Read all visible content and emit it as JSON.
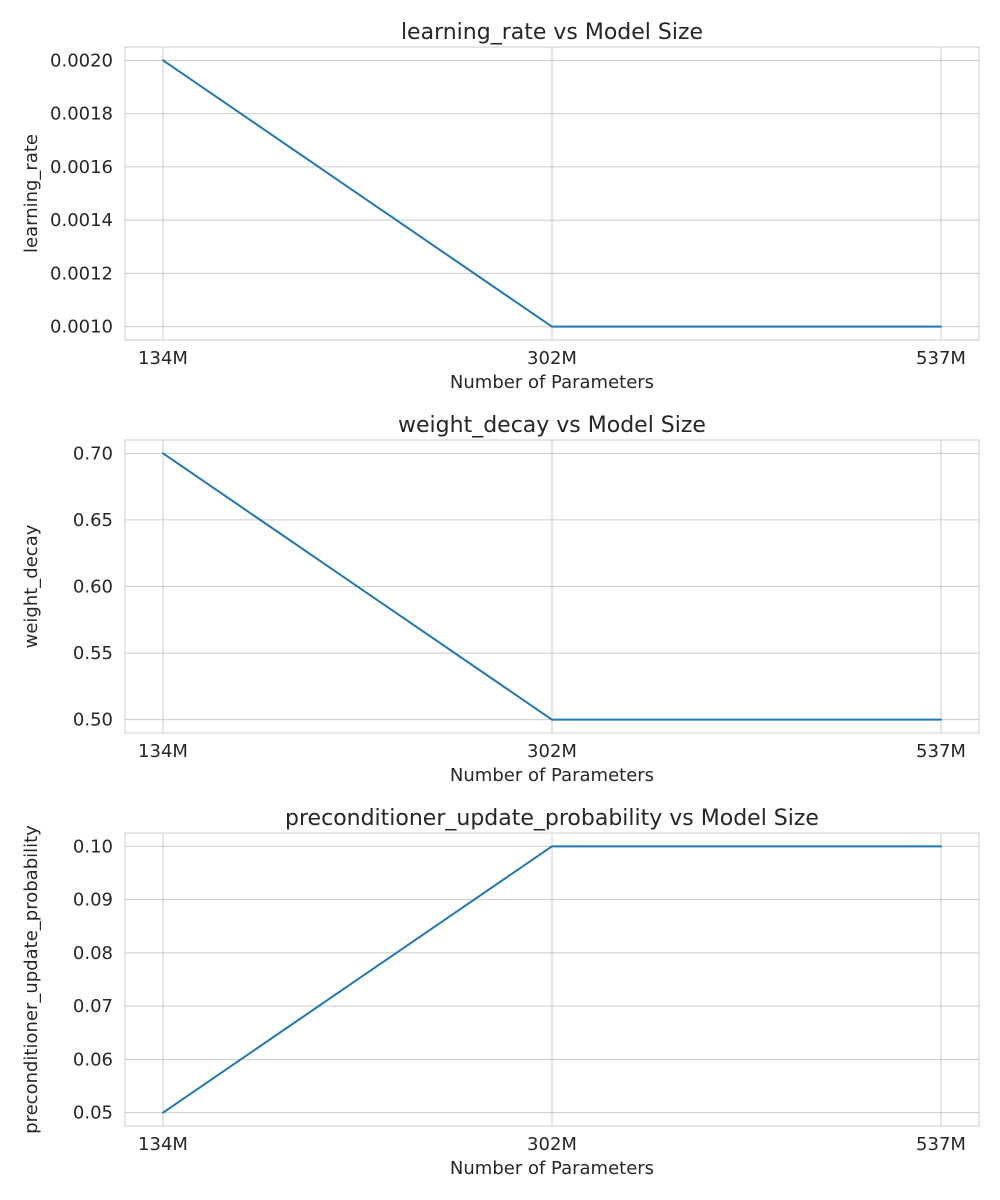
{
  "chart_data": [
    {
      "type": "line",
      "title": "learning_rate vs Model Size",
      "xlabel": "Number of Parameters",
      "ylabel": "learning_rate",
      "categories": [
        "134M",
        "302M",
        "537M"
      ],
      "x": [
        134,
        302,
        537
      ],
      "values": [
        0.002,
        0.001,
        0.001
      ],
      "ylim": [
        0.00095,
        0.00205
      ],
      "yticks": [
        0.001,
        0.0012,
        0.0014,
        0.0016,
        0.0018,
        0.002
      ],
      "ytick_labels": [
        "0.0010",
        "0.0012",
        "0.0014",
        "0.0016",
        "0.0018",
        "0.0020"
      ],
      "grid": true,
      "color": "#1f77b4"
    },
    {
      "type": "line",
      "title": "weight_decay vs Model Size",
      "xlabel": "Number of Parameters",
      "ylabel": "weight_decay",
      "categories": [
        "134M",
        "302M",
        "537M"
      ],
      "x": [
        134,
        302,
        537
      ],
      "values": [
        0.7,
        0.5,
        0.5
      ],
      "ylim": [
        0.49,
        0.71
      ],
      "yticks": [
        0.5,
        0.55,
        0.6,
        0.65,
        0.7
      ],
      "ytick_labels": [
        "0.50",
        "0.55",
        "0.60",
        "0.65",
        "0.70"
      ],
      "grid": true,
      "color": "#1f77b4"
    },
    {
      "type": "line",
      "title": "preconditioner_update_probability vs Model Size",
      "xlabel": "Number of Parameters",
      "ylabel": "preconditioner_update_probability",
      "categories": [
        "134M",
        "302M",
        "537M"
      ],
      "x": [
        134,
        302,
        537
      ],
      "values": [
        0.05,
        0.1,
        0.1
      ],
      "ylim": [
        0.0475,
        0.1025
      ],
      "yticks": [
        0.05,
        0.06,
        0.07,
        0.08,
        0.09,
        0.1
      ],
      "ytick_labels": [
        "0.05",
        "0.06",
        "0.07",
        "0.08",
        "0.09",
        "0.10"
      ],
      "grid": true,
      "color": "#1f77b4"
    }
  ]
}
